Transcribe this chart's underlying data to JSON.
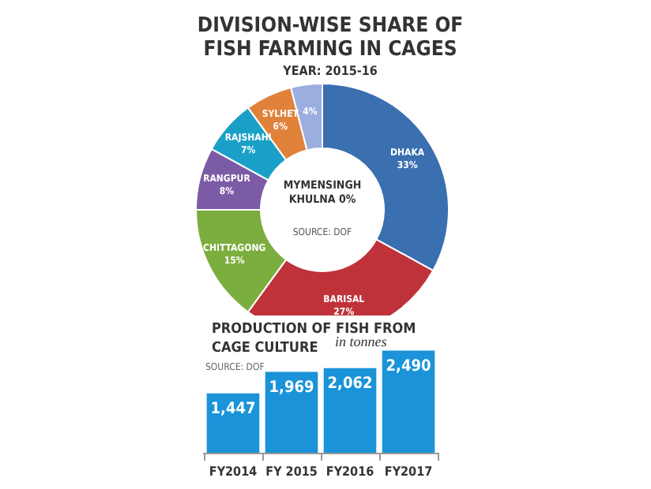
{
  "chart_data": [
    {
      "type": "donut",
      "title": "DIVISION-WISE SHARE OF\nFISH FARMING IN CAGES",
      "subtitle": "YEAR: 2015-16",
      "categories": [
        "DHAKA",
        "BARISAL",
        "CHITTAGONG",
        "RANGPUR",
        "RAJSHAHI",
        "SYLHET",
        null
      ],
      "values": [
        33,
        27,
        15,
        8,
        7,
        6,
        4
      ],
      "value_labels": [
        "33%",
        "27%",
        "15%",
        "8%",
        "7%",
        "6%",
        "4%"
      ],
      "colors": [
        "#3a6fb0",
        "#c0323a",
        "#7cad3f",
        "#7b5aa6",
        "#1aa0c8",
        "#e0823a",
        "#9aaee0"
      ],
      "annotations": [
        "MYMENSINGH\nKHULNA 0%",
        "SOURCE: DOF"
      ],
      "legend": false
    },
    {
      "type": "bar",
      "title": "PRODUCTION OF FISH FROM\nCAGE CULTURE",
      "ylabel": "in tonnes",
      "categories": [
        "FY2014",
        "FY 2015",
        "FY2016",
        "FY2017"
      ],
      "values": [
        1447,
        1969,
        2062,
        2490
      ],
      "color": "#1a93d9",
      "value_labels": [
        "1,447",
        "1,969",
        "2,062",
        "2,490"
      ],
      "tick_labels": "x",
      "grid": false,
      "legend": false,
      "annotations": [
        "SOURCE: DOF"
      ]
    }
  ]
}
